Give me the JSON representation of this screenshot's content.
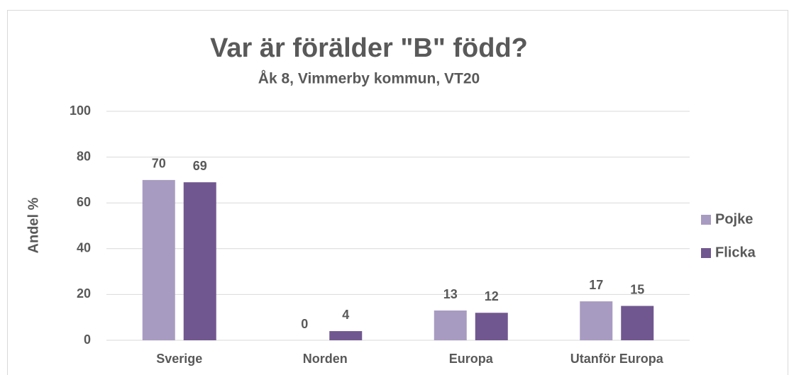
{
  "chart_data": {
    "type": "bar",
    "title": "Var är förälder \"B\" född?",
    "subtitle": "Åk 8, Vimmerby kommun, VT20",
    "y_label": "Andel %",
    "categories": [
      "Sverige",
      "Norden",
      "Europa",
      "Utanför Europa"
    ],
    "series": [
      {
        "name": "Pojke",
        "color": "#a89bc1",
        "values": [
          70,
          0,
          13,
          17
        ]
      },
      {
        "name": "Flicka",
        "color": "#715790",
        "values": [
          69,
          4,
          12,
          15
        ]
      }
    ],
    "ylim": [
      0,
      100
    ],
    "yticks": [
      0,
      20,
      40,
      60,
      80,
      100
    ],
    "grid": true,
    "legend": "right"
  }
}
